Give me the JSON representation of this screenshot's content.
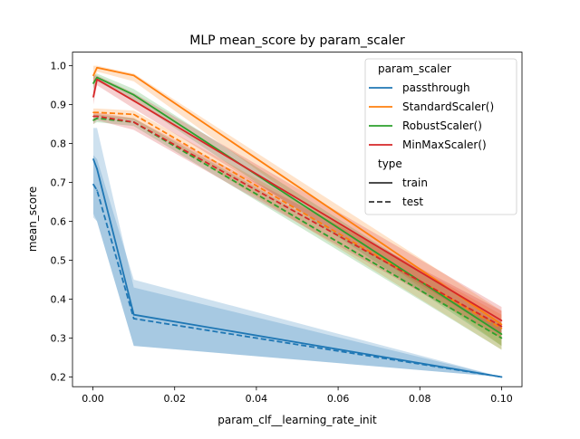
{
  "chart_data": {
    "type": "line",
    "title": "MLP mean_score by param_scaler",
    "xlabel": "param_clf__learning_rate_init",
    "ylabel": "mean_score",
    "xlim": [
      -0.005,
      0.105
    ],
    "ylim": [
      0.175,
      1.035
    ],
    "x_ticks": [
      0.0,
      0.02,
      0.04,
      0.06,
      0.08,
      0.1
    ],
    "x_tick_labels": [
      "0.00",
      "0.02",
      "0.04",
      "0.06",
      "0.08",
      "0.10"
    ],
    "y_ticks": [
      0.2,
      0.3,
      0.4,
      0.5,
      0.6,
      0.7,
      0.8,
      0.9,
      1.0
    ],
    "y_tick_labels": [
      "0.2",
      "0.3",
      "0.4",
      "0.5",
      "0.6",
      "0.7",
      "0.8",
      "0.9",
      "1.0"
    ],
    "grid": false,
    "legend": {
      "placement": "top-right",
      "hue_title": "param_scaler",
      "style_title": "type",
      "style_entries": [
        {
          "label": "train",
          "dash": "solid"
        },
        {
          "label": "test",
          "dash": "dashed"
        }
      ]
    },
    "x": [
      0.0001,
      0.001,
      0.01,
      0.1
    ],
    "series": [
      {
        "name": "passthrough",
        "color": "#1f77b4",
        "train": [
          0.76,
          0.735,
          0.36,
          0.2
        ],
        "train_ci": [
          [
            0.62,
            0.84
          ],
          [
            0.6,
            0.84
          ],
          [
            0.28,
            0.43
          ],
          [
            0.2,
            0.2
          ]
        ],
        "test": [
          0.695,
          0.68,
          0.35,
          0.2
        ],
        "test_ci": [
          [
            0.61,
            0.77
          ],
          [
            0.6,
            0.76
          ],
          [
            0.28,
            0.45
          ],
          [
            0.2,
            0.2
          ]
        ]
      },
      {
        "name": "StandardScaler()",
        "color": "#ff7f0e",
        "train": [
          0.975,
          0.995,
          0.975,
          0.335
        ],
        "train_ci": [
          [
            0.95,
            1.0
          ],
          [
            0.985,
            1.0
          ],
          [
            0.96,
            0.98
          ],
          [
            0.28,
            0.37
          ]
        ],
        "test": [
          0.88,
          0.88,
          0.875,
          0.325
        ],
        "test_ci": [
          [
            0.87,
            0.89
          ],
          [
            0.87,
            0.89
          ],
          [
            0.86,
            0.885
          ],
          [
            0.27,
            0.36
          ]
        ]
      },
      {
        "name": "RobustScaler()",
        "color": "#2ca02c",
        "train": [
          0.955,
          0.97,
          0.925,
          0.31
        ],
        "train_ci": [
          [
            0.94,
            0.975
          ],
          [
            0.96,
            0.98
          ],
          [
            0.91,
            0.94
          ],
          [
            0.28,
            0.34
          ]
        ],
        "test": [
          0.86,
          0.865,
          0.855,
          0.3
        ],
        "test_ci": [
          [
            0.85,
            0.875
          ],
          [
            0.855,
            0.875
          ],
          [
            0.845,
            0.865
          ],
          [
            0.27,
            0.33
          ]
        ]
      },
      {
        "name": "MinMaxScaler()",
        "color": "#d62728",
        "train": [
          0.92,
          0.965,
          0.91,
          0.345
        ],
        "train_ci": [
          [
            0.9,
            0.975
          ],
          [
            0.95,
            0.975
          ],
          [
            0.89,
            0.93
          ],
          [
            0.31,
            0.38
          ]
        ],
        "test": [
          0.87,
          0.87,
          0.855,
          0.33
        ],
        "test_ci": [
          [
            0.85,
            0.88
          ],
          [
            0.86,
            0.88
          ],
          [
            0.835,
            0.865
          ],
          [
            0.3,
            0.37
          ]
        ]
      }
    ]
  }
}
